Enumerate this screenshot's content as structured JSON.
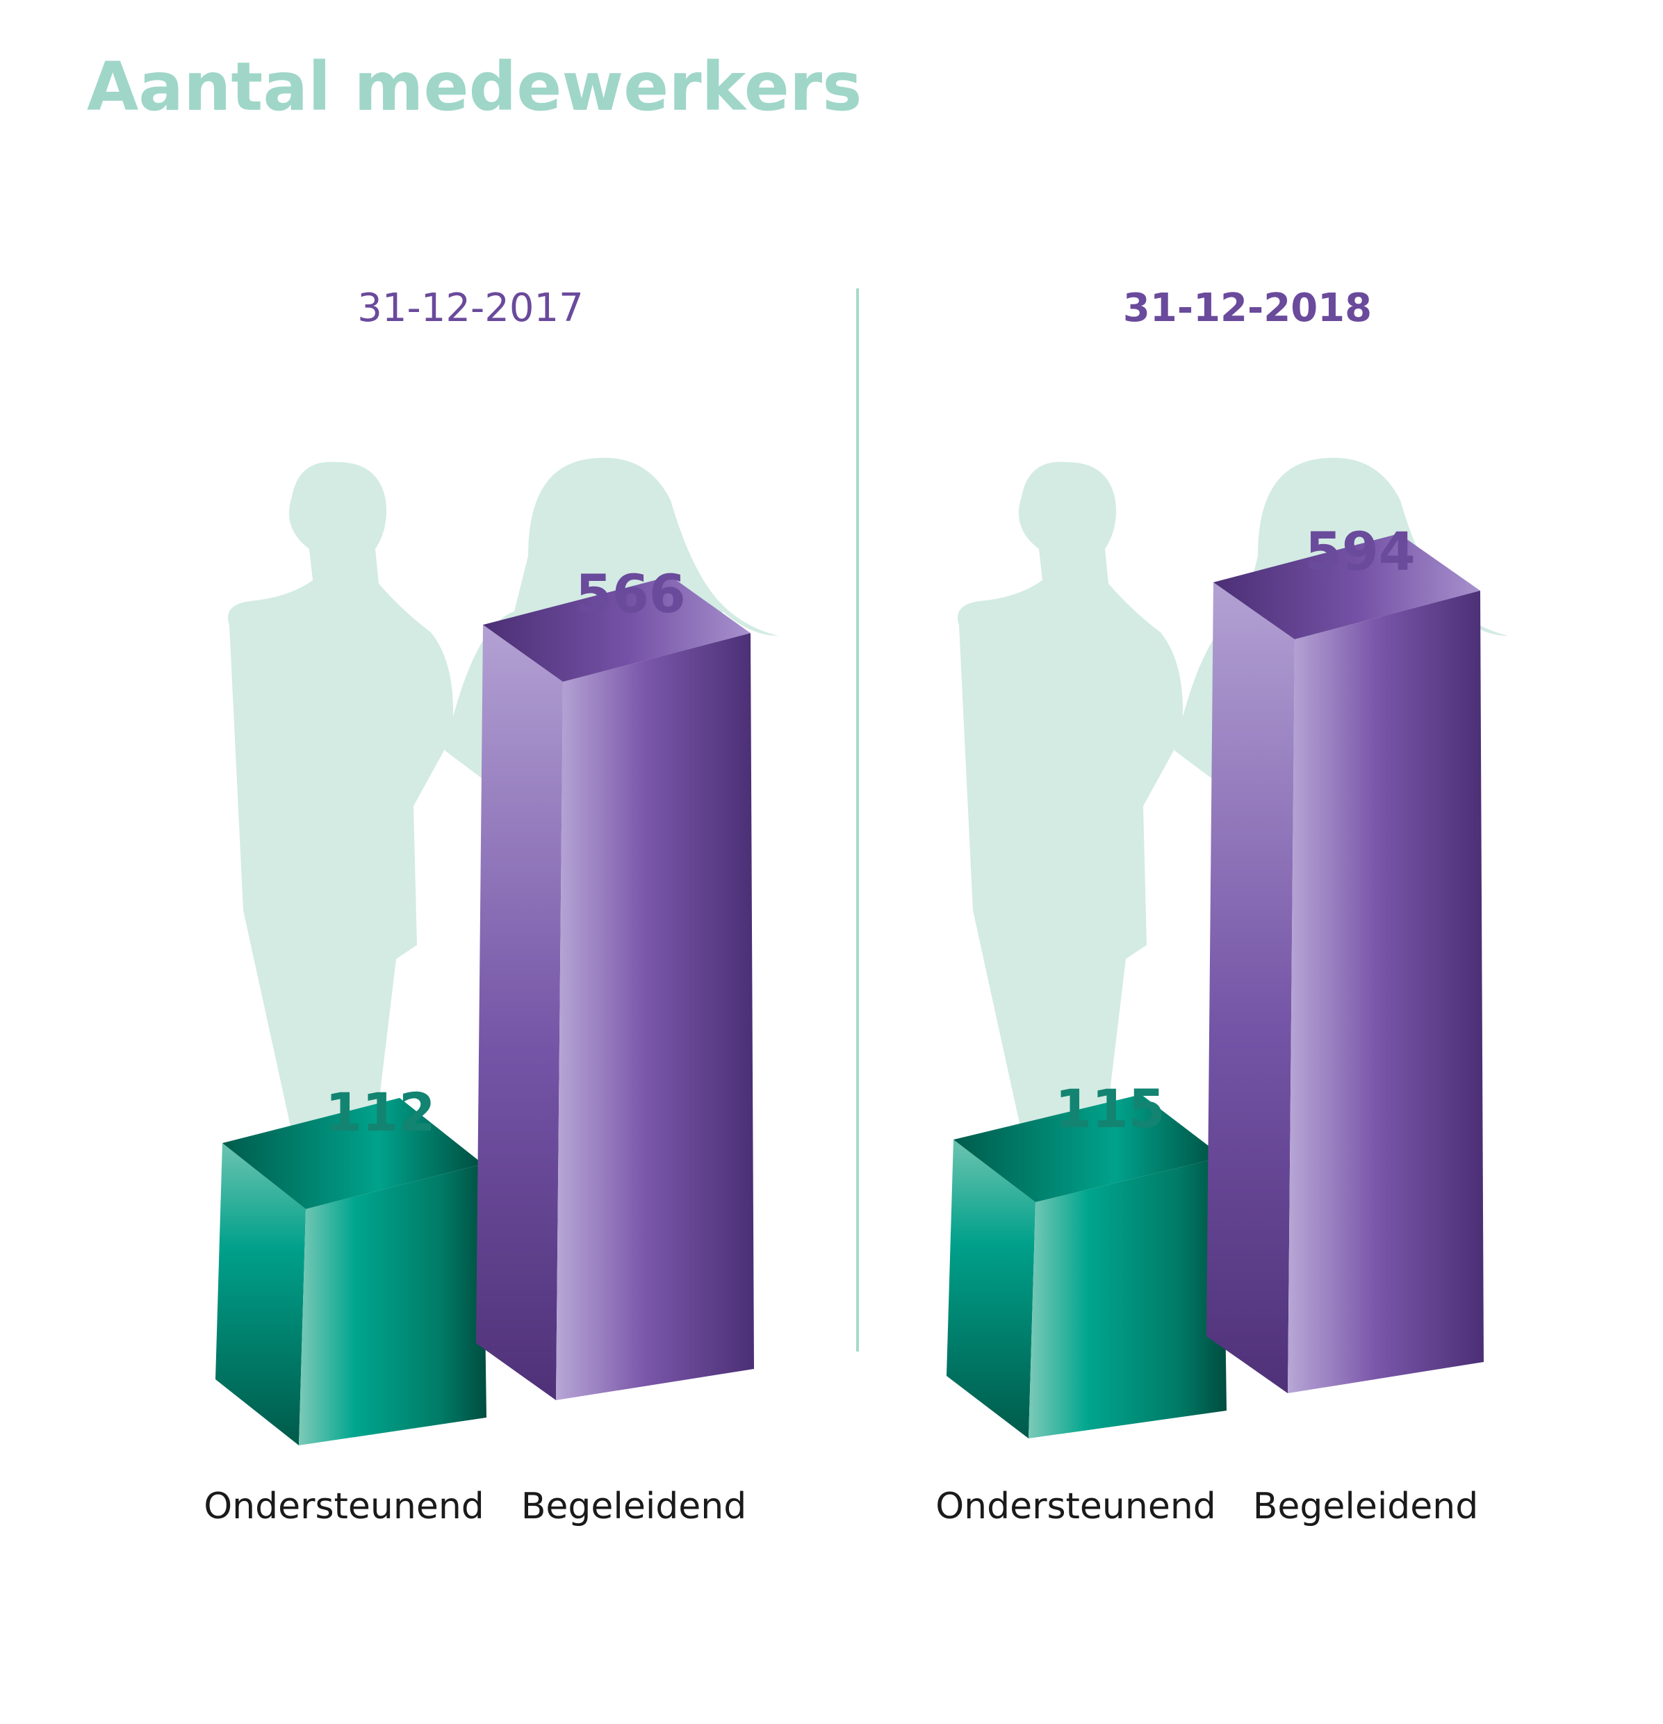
{
  "title": "Aantal medewerkers",
  "colors": {
    "title": "#9fd6c8",
    "silhouette": "#d3ebe3",
    "divider": "#a6d9cb",
    "teal": "#00997f",
    "purple": "#6a4a9b",
    "teal_label": "#138471",
    "purple_label": "#6a4a9b",
    "category_text": "#1a1a1a"
  },
  "chart_data": [
    {
      "type": "bar",
      "subtitle": "31-12-2017",
      "categories": [
        "Ondersteunend",
        "Begeleidend"
      ],
      "values": [
        112,
        566
      ],
      "value_labels": [
        "112",
        "566"
      ]
    },
    {
      "type": "bar",
      "subtitle": "31-12-2018",
      "categories": [
        "Ondersteunend",
        "Begeleidend"
      ],
      "values": [
        115,
        594
      ],
      "value_labels": [
        "115",
        "594"
      ]
    }
  ]
}
